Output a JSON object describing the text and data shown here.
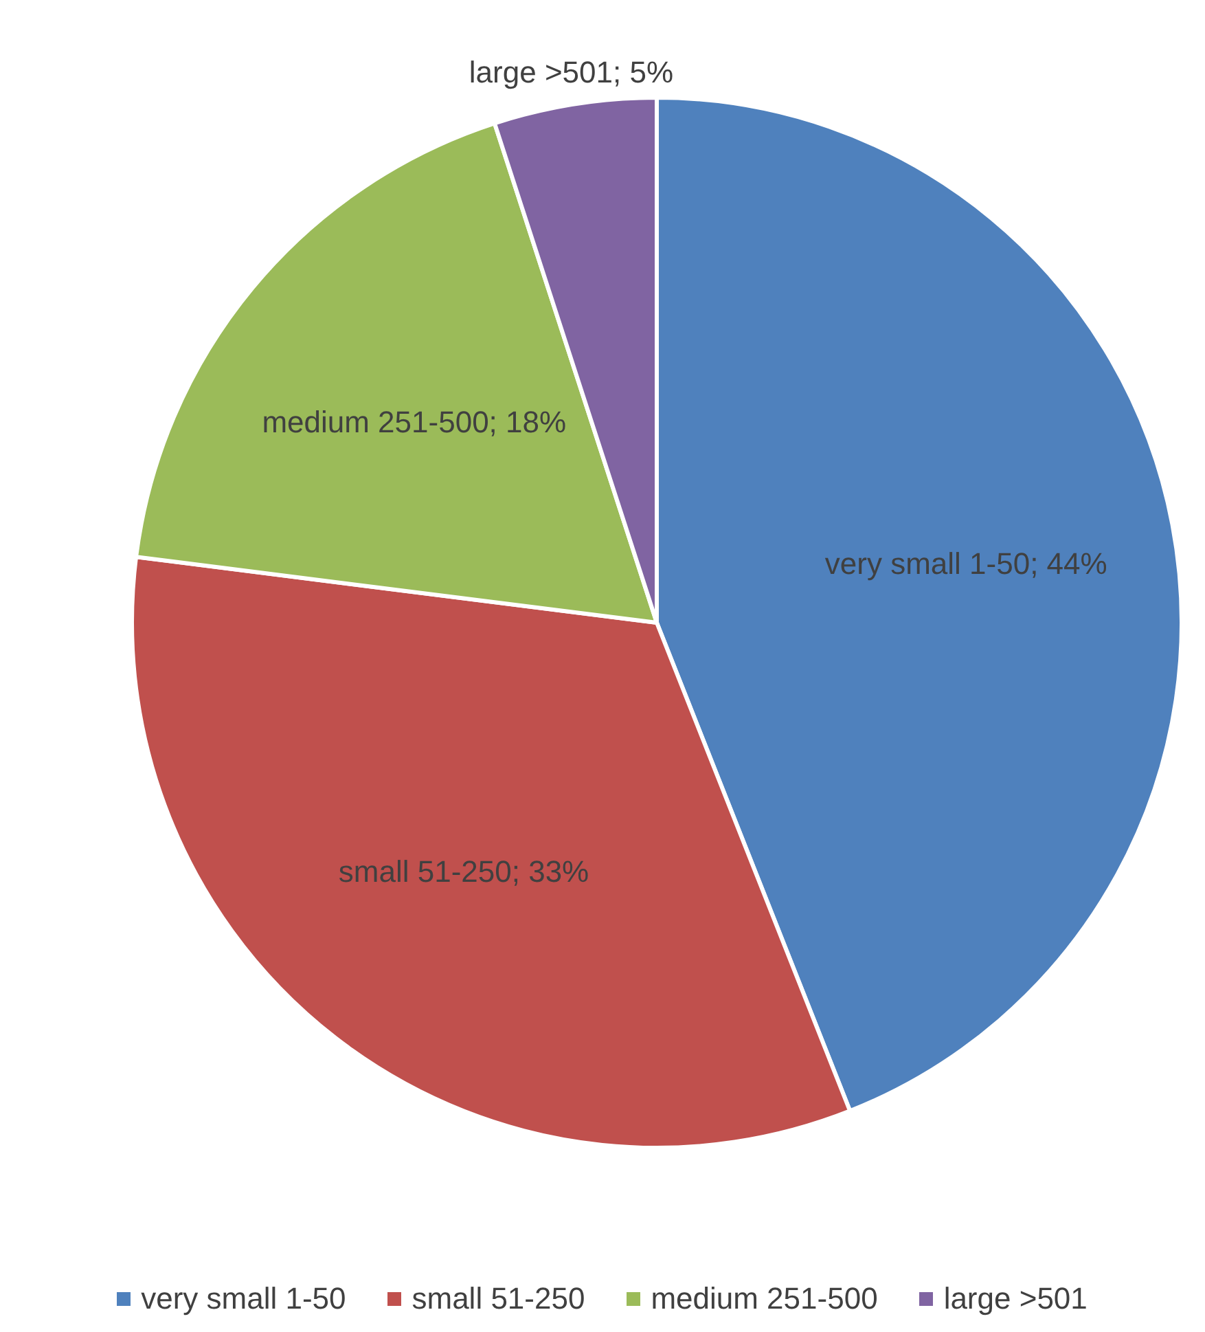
{
  "chart_data": {
    "type": "pie",
    "categories": [
      "very small 1-50",
      "small 51-250",
      "medium 251-500",
      "large >501"
    ],
    "values": [
      44,
      33,
      18,
      5
    ],
    "colors": [
      "#4f81bd",
      "#c0504d",
      "#9bbb59",
      "#8064a2"
    ],
    "value_labels": [
      "very small 1-50; 44%",
      "small 51-250; 33%",
      "medium 251-500; 18%",
      "large >501; 5%"
    ],
    "legend": "bottom"
  }
}
